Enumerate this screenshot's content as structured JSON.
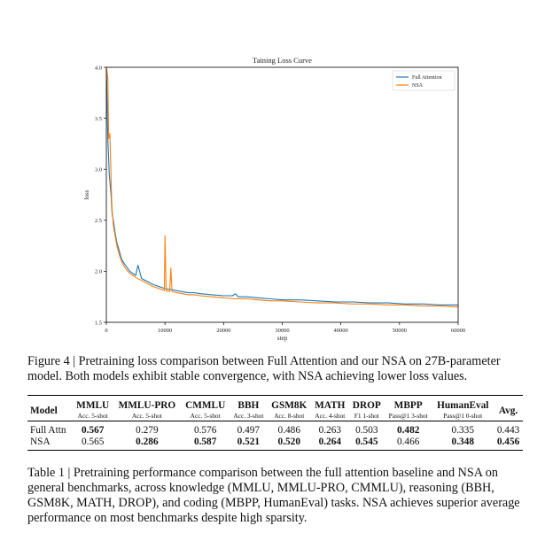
{
  "chart_data": {
    "type": "line",
    "title": "Taining Loss Curve",
    "xlabel": "step",
    "ylabel": "loss",
    "xlim": [
      0,
      60000
    ],
    "ylim": [
      1.5,
      4.0
    ],
    "x_ticks": [
      0,
      10000,
      20000,
      30000,
      40000,
      50000,
      60000
    ],
    "x_tick_labels": [
      "0",
      "10000",
      "20000",
      "30000",
      "40000",
      "50000",
      "60000"
    ],
    "y_ticks": [
      1.5,
      2.0,
      2.5,
      3.0,
      3.5,
      4.0
    ],
    "y_tick_labels": [
      "1.5",
      "2.0",
      "2.5",
      "3.0",
      "3.5",
      "4.0"
    ],
    "grid": false,
    "legend_position": "top-right",
    "series": [
      {
        "name": "Full Attention",
        "color": "#1f77b4",
        "x": [
          0,
          250,
          500,
          800,
          1000,
          1200,
          1500,
          1800,
          2200,
          2600,
          3000,
          3500,
          4000,
          4500,
          5000,
          5400,
          6000,
          7000,
          8000,
          9000,
          10000,
          11000,
          12000,
          13000,
          14000,
          15000,
          16000,
          18000,
          20000,
          21500,
          22000,
          22500,
          24000,
          26000,
          28000,
          30000,
          33000,
          36000,
          39000,
          42000,
          45000,
          48000,
          51000,
          54000,
          57000,
          60000
        ],
        "y": [
          4.0,
          3.3,
          2.95,
          2.75,
          2.55,
          2.5,
          2.38,
          2.28,
          2.2,
          2.12,
          2.08,
          2.04,
          2.0,
          1.98,
          1.96,
          2.06,
          1.93,
          1.9,
          1.87,
          1.85,
          1.83,
          1.82,
          1.81,
          1.8,
          1.79,
          1.79,
          1.78,
          1.77,
          1.76,
          1.76,
          1.78,
          1.75,
          1.75,
          1.74,
          1.73,
          1.72,
          1.72,
          1.71,
          1.7,
          1.7,
          1.69,
          1.69,
          1.68,
          1.68,
          1.67,
          1.67
        ]
      },
      {
        "name": "NSA",
        "color": "#ff7f0e",
        "x": [
          0,
          250,
          400,
          600,
          900,
          1000,
          1200,
          1500,
          1800,
          2200,
          2600,
          3000,
          3500,
          4000,
          4500,
          5000,
          6000,
          7000,
          8000,
          9000,
          9900,
          10000,
          10200,
          10800,
          11000,
          11200,
          12000,
          13000,
          14000,
          15000,
          16000,
          18000,
          20000,
          22000,
          24000,
          26000,
          28000,
          30000,
          33000,
          36000,
          39000,
          42000,
          45000,
          48000,
          51000,
          54000,
          57000,
          60000
        ],
        "y": [
          4.0,
          3.9,
          3.3,
          3.35,
          2.7,
          2.6,
          2.45,
          2.35,
          2.25,
          2.16,
          2.1,
          2.05,
          2.01,
          1.98,
          1.96,
          1.94,
          1.91,
          1.88,
          1.85,
          1.83,
          1.81,
          2.35,
          1.81,
          1.8,
          2.03,
          1.8,
          1.79,
          1.78,
          1.77,
          1.77,
          1.76,
          1.75,
          1.74,
          1.73,
          1.73,
          1.72,
          1.71,
          1.71,
          1.7,
          1.69,
          1.69,
          1.68,
          1.68,
          1.67,
          1.67,
          1.66,
          1.66,
          1.65
        ]
      }
    ]
  },
  "figure_caption": "Figure 4 | Pretraining loss comparison between Full Attention and our NSA on 27B-parameter model. Both models exhibit stable convergence, with NSA achieving lower loss values.",
  "table": {
    "model_header": "Model",
    "avg_header": "Avg.",
    "columns": [
      {
        "name": "MMLU",
        "metric": "Acc. 5-shot"
      },
      {
        "name": "MMLU-PRO",
        "metric": "Acc. 5-shot"
      },
      {
        "name": "CMMLU",
        "metric": "Acc. 5-shot"
      },
      {
        "name": "BBH",
        "metric": "Acc. 3-shot"
      },
      {
        "name": "GSM8K",
        "metric": "Acc. 8-shot"
      },
      {
        "name": "MATH",
        "metric": "Acc. 4-shot"
      },
      {
        "name": "DROP",
        "metric": "F1 1-shot"
      },
      {
        "name": "MBPP",
        "metric": "Pass@1 3-shot"
      },
      {
        "name": "HumanEval",
        "metric": "Pass@1 0-shot"
      }
    ],
    "rows": [
      {
        "model": "Full Attn",
        "values": [
          "0.567",
          "0.279",
          "0.576",
          "0.497",
          "0.486",
          "0.263",
          "0.503",
          "0.482",
          "0.335"
        ],
        "avg": "0.443",
        "bold": [
          true,
          false,
          false,
          false,
          false,
          false,
          false,
          true,
          false
        ],
        "avg_bold": false
      },
      {
        "model": "NSA",
        "values": [
          "0.565",
          "0.286",
          "0.587",
          "0.521",
          "0.520",
          "0.264",
          "0.545",
          "0.466",
          "0.348"
        ],
        "avg": "0.456",
        "bold": [
          false,
          true,
          true,
          true,
          true,
          true,
          true,
          false,
          true
        ],
        "avg_bold": true
      }
    ]
  },
  "table_caption": "Table 1 | Pretraining performance comparison between the full attention baseline and NSA on general benchmarks, across knowledge (MMLU, MMLU-PRO, CMMLU), reasoning (BBH, GSM8K, MATH, DROP), and coding (MBPP, HumanEval) tasks. NSA achieves superior average performance on most benchmarks despite high sparsity."
}
